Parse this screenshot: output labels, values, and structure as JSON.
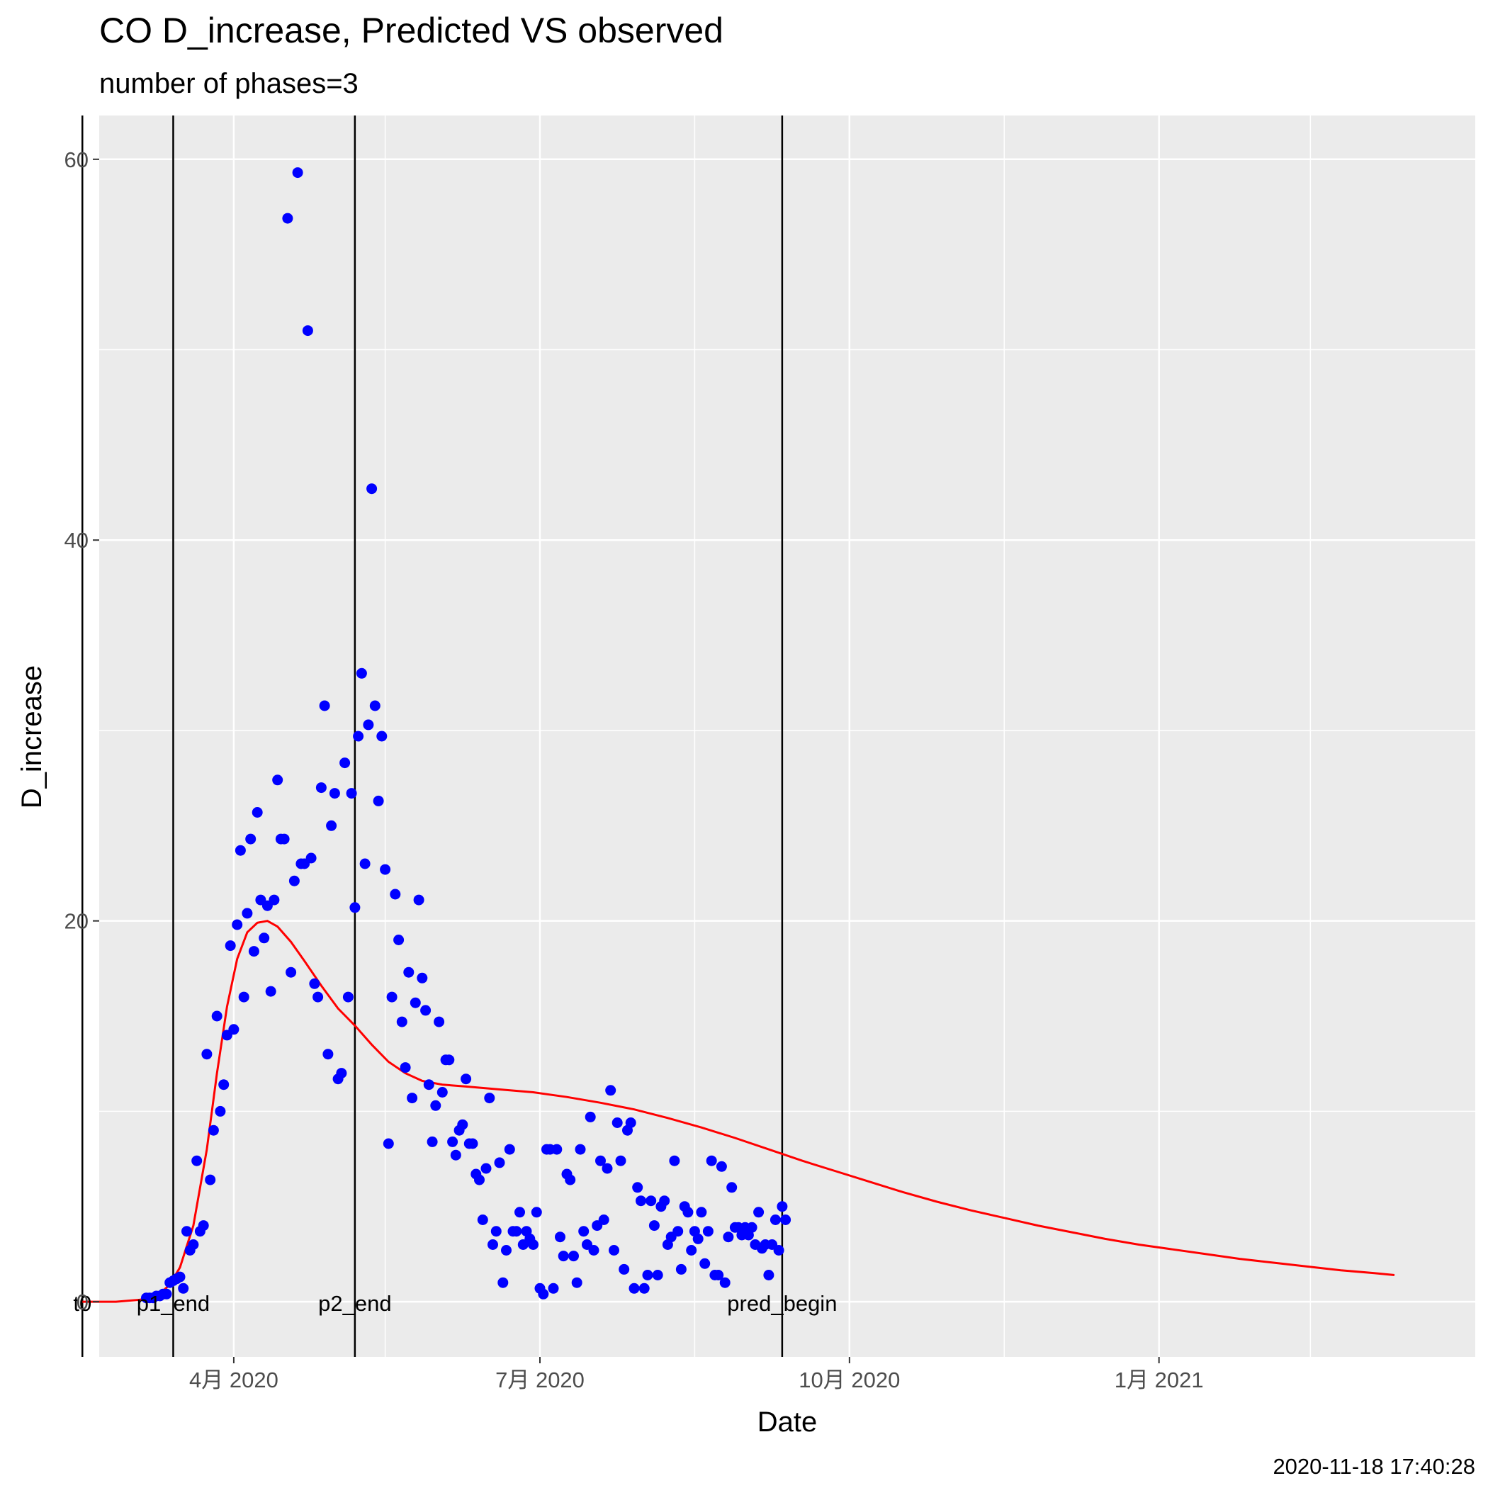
{
  "chart_data": {
    "type": "scatter",
    "title": "CO D_increase, Predicted VS observed",
    "subtitle": "number of phases=3",
    "xlabel": "Date",
    "ylabel": "D_increase",
    "caption": "2020-11-18 17:40:28",
    "xlim": [
      "2020-02-21",
      "2021-04-05"
    ],
    "ylim": [
      -2.9,
      62.3
    ],
    "grid": true,
    "x_ticks": [
      {
        "date": "2020-04-01",
        "label": "4月 2020"
      },
      {
        "date": "2020-07-01",
        "label": "7月 2020"
      },
      {
        "date": "2020-10-01",
        "label": "10月 2020"
      },
      {
        "date": "2021-01-01",
        "label": "1月 2021"
      }
    ],
    "x_minor_ticks": [
      "2020-02-15",
      "2020-05-16",
      "2020-08-16",
      "2020-11-16",
      "2021-02-15"
    ],
    "y_ticks": [
      0,
      20,
      40,
      60
    ],
    "y_minor_ticks": [
      10,
      30,
      50
    ],
    "vlines": [
      {
        "date": "2020-02-16",
        "label": "t0"
      },
      {
        "date": "2020-03-14",
        "label": "p1_end"
      },
      {
        "date": "2020-05-07",
        "label": "p2_end"
      },
      {
        "date": "2020-09-11",
        "label": "pred_begin"
      }
    ],
    "series": [
      {
        "role": "observed",
        "color": "#0000ff",
        "points": [
          [
            "2020-03-06",
            0.2
          ],
          [
            "2020-03-07",
            0.2
          ],
          [
            "2020-03-08",
            0.2
          ],
          [
            "2020-03-09",
            0.3
          ],
          [
            "2020-03-10",
            0.3
          ],
          [
            "2020-03-11",
            0.4
          ],
          [
            "2020-03-12",
            0.4
          ],
          [
            "2020-03-13",
            1.0
          ],
          [
            "2020-03-14",
            1.1
          ],
          [
            "2020-03-15",
            1.2
          ],
          [
            "2020-03-16",
            1.3
          ],
          [
            "2020-03-17",
            0.7
          ],
          [
            "2020-03-18",
            3.7
          ],
          [
            "2020-03-19",
            2.7
          ],
          [
            "2020-03-20",
            3.0
          ],
          [
            "2020-03-21",
            7.4
          ],
          [
            "2020-03-22",
            3.7
          ],
          [
            "2020-03-23",
            4.0
          ],
          [
            "2020-03-24",
            13.0
          ],
          [
            "2020-03-25",
            6.4
          ],
          [
            "2020-03-26",
            9.0
          ],
          [
            "2020-03-27",
            15.0
          ],
          [
            "2020-03-28",
            10.0
          ],
          [
            "2020-03-29",
            11.4
          ],
          [
            "2020-03-30",
            14.0
          ],
          [
            "2020-03-31",
            18.7
          ],
          [
            "2020-04-01",
            14.3
          ],
          [
            "2020-04-02",
            19.8
          ],
          [
            "2020-04-03",
            23.7
          ],
          [
            "2020-04-04",
            16.0
          ],
          [
            "2020-04-05",
            20.4
          ],
          [
            "2020-04-06",
            24.3
          ],
          [
            "2020-04-07",
            18.4
          ],
          [
            "2020-04-08",
            25.7
          ],
          [
            "2020-04-09",
            21.1
          ],
          [
            "2020-04-10",
            19.1
          ],
          [
            "2020-04-11",
            20.8
          ],
          [
            "2020-04-12",
            16.3
          ],
          [
            "2020-04-13",
            21.1
          ],
          [
            "2020-04-14",
            27.4
          ],
          [
            "2020-04-15",
            24.3
          ],
          [
            "2020-04-16",
            24.3
          ],
          [
            "2020-04-17",
            56.9
          ],
          [
            "2020-04-18",
            17.3
          ],
          [
            "2020-04-19",
            22.1
          ],
          [
            "2020-04-20",
            59.3
          ],
          [
            "2020-04-21",
            23.0
          ],
          [
            "2020-04-22",
            23.0
          ],
          [
            "2020-04-23",
            51.0
          ],
          [
            "2020-04-24",
            23.3
          ],
          [
            "2020-04-25",
            16.7
          ],
          [
            "2020-04-26",
            16.0
          ],
          [
            "2020-04-27",
            27.0
          ],
          [
            "2020-04-28",
            31.3
          ],
          [
            "2020-04-29",
            13.0
          ],
          [
            "2020-04-30",
            25.0
          ],
          [
            "2020-05-01",
            26.7
          ],
          [
            "2020-05-02",
            11.7
          ],
          [
            "2020-05-03",
            12.0
          ],
          [
            "2020-05-04",
            28.3
          ],
          [
            "2020-05-05",
            16.0
          ],
          [
            "2020-05-06",
            26.7
          ],
          [
            "2020-05-07",
            20.7
          ],
          [
            "2020-05-08",
            29.7
          ],
          [
            "2020-05-09",
            33.0
          ],
          [
            "2020-05-10",
            23.0
          ],
          [
            "2020-05-11",
            30.3
          ],
          [
            "2020-05-12",
            42.7
          ],
          [
            "2020-05-13",
            31.3
          ],
          [
            "2020-05-14",
            26.3
          ],
          [
            "2020-05-15",
            29.7
          ],
          [
            "2020-05-16",
            22.7
          ],
          [
            "2020-05-17",
            8.3
          ],
          [
            "2020-05-18",
            16.0
          ],
          [
            "2020-05-19",
            21.4
          ],
          [
            "2020-05-20",
            19.0
          ],
          [
            "2020-05-21",
            14.7
          ],
          [
            "2020-05-22",
            12.3
          ],
          [
            "2020-05-23",
            17.3
          ],
          [
            "2020-05-24",
            10.7
          ],
          [
            "2020-05-25",
            15.7
          ],
          [
            "2020-05-26",
            21.1
          ],
          [
            "2020-05-27",
            17.0
          ],
          [
            "2020-05-28",
            15.3
          ],
          [
            "2020-05-29",
            11.4
          ],
          [
            "2020-05-30",
            8.4
          ],
          [
            "2020-05-31",
            10.3
          ],
          [
            "2020-06-01",
            14.7
          ],
          [
            "2020-06-02",
            11.0
          ],
          [
            "2020-06-03",
            12.7
          ],
          [
            "2020-06-04",
            12.7
          ],
          [
            "2020-06-05",
            8.4
          ],
          [
            "2020-06-06",
            7.7
          ],
          [
            "2020-06-07",
            9.0
          ],
          [
            "2020-06-08",
            9.3
          ],
          [
            "2020-06-09",
            11.7
          ],
          [
            "2020-06-10",
            8.3
          ],
          [
            "2020-06-11",
            8.3
          ],
          [
            "2020-06-12",
            6.7
          ],
          [
            "2020-06-13",
            6.4
          ],
          [
            "2020-06-14",
            4.3
          ],
          [
            "2020-06-15",
            7.0
          ],
          [
            "2020-06-16",
            10.7
          ],
          [
            "2020-06-17",
            3.0
          ],
          [
            "2020-06-18",
            3.7
          ],
          [
            "2020-06-19",
            7.3
          ],
          [
            "2020-06-20",
            1.0
          ],
          [
            "2020-06-21",
            2.7
          ],
          [
            "2020-06-22",
            8.0
          ],
          [
            "2020-06-23",
            3.7
          ],
          [
            "2020-06-24",
            3.7
          ],
          [
            "2020-06-25",
            4.7
          ],
          [
            "2020-06-26",
            3.0
          ],
          [
            "2020-06-27",
            3.7
          ],
          [
            "2020-06-28",
            3.3
          ],
          [
            "2020-06-29",
            3.0
          ],
          [
            "2020-06-30",
            4.7
          ],
          [
            "2020-07-01",
            0.7
          ],
          [
            "2020-07-02",
            0.4
          ],
          [
            "2020-07-03",
            8.0
          ],
          [
            "2020-07-04",
            8.0
          ],
          [
            "2020-07-05",
            0.7
          ],
          [
            "2020-07-06",
            8.0
          ],
          [
            "2020-07-07",
            3.4
          ],
          [
            "2020-07-08",
            2.4
          ],
          [
            "2020-07-09",
            6.7
          ],
          [
            "2020-07-10",
            6.4
          ],
          [
            "2020-07-11",
            2.4
          ],
          [
            "2020-07-12",
            1.0
          ],
          [
            "2020-07-13",
            8.0
          ],
          [
            "2020-07-14",
            3.7
          ],
          [
            "2020-07-15",
            3.0
          ],
          [
            "2020-07-16",
            9.7
          ],
          [
            "2020-07-17",
            2.7
          ],
          [
            "2020-07-18",
            4.0
          ],
          [
            "2020-07-19",
            7.4
          ],
          [
            "2020-07-20",
            4.3
          ],
          [
            "2020-07-21",
            7.0
          ],
          [
            "2020-07-22",
            11.1
          ],
          [
            "2020-07-23",
            2.7
          ],
          [
            "2020-07-24",
            9.4
          ],
          [
            "2020-07-25",
            7.4
          ],
          [
            "2020-07-26",
            1.7
          ],
          [
            "2020-07-27",
            9.0
          ],
          [
            "2020-07-28",
            9.4
          ],
          [
            "2020-07-29",
            0.7
          ],
          [
            "2020-07-30",
            6.0
          ],
          [
            "2020-07-31",
            5.3
          ],
          [
            "2020-08-01",
            0.7
          ],
          [
            "2020-08-02",
            1.4
          ],
          [
            "2020-08-03",
            5.3
          ],
          [
            "2020-08-04",
            4.0
          ],
          [
            "2020-08-05",
            1.4
          ],
          [
            "2020-08-06",
            5.0
          ],
          [
            "2020-08-07",
            5.3
          ],
          [
            "2020-08-08",
            3.0
          ],
          [
            "2020-08-09",
            3.4
          ],
          [
            "2020-08-10",
            7.4
          ],
          [
            "2020-08-11",
            3.7
          ],
          [
            "2020-08-12",
            1.7
          ],
          [
            "2020-08-13",
            5.0
          ],
          [
            "2020-08-14",
            4.7
          ],
          [
            "2020-08-15",
            2.7
          ],
          [
            "2020-08-16",
            3.7
          ],
          [
            "2020-08-17",
            3.3
          ],
          [
            "2020-08-18",
            4.7
          ],
          [
            "2020-08-19",
            2.0
          ],
          [
            "2020-08-20",
            3.7
          ],
          [
            "2020-08-21",
            7.4
          ],
          [
            "2020-08-22",
            1.4
          ],
          [
            "2020-08-23",
            1.4
          ],
          [
            "2020-08-24",
            7.1
          ],
          [
            "2020-08-25",
            1.0
          ],
          [
            "2020-08-26",
            3.4
          ],
          [
            "2020-08-27",
            6.0
          ],
          [
            "2020-08-28",
            3.9
          ],
          [
            "2020-08-29",
            3.9
          ],
          [
            "2020-08-30",
            3.5
          ],
          [
            "2020-08-31",
            3.9
          ],
          [
            "2020-09-01",
            3.5
          ],
          [
            "2020-09-02",
            3.9
          ],
          [
            "2020-09-03",
            3.0
          ],
          [
            "2020-09-04",
            4.7
          ],
          [
            "2020-09-05",
            2.8
          ],
          [
            "2020-09-06",
            3.0
          ],
          [
            "2020-09-07",
            1.4
          ],
          [
            "2020-09-08",
            3.0
          ],
          [
            "2020-09-09",
            4.3
          ],
          [
            "2020-09-10",
            2.7
          ],
          [
            "2020-09-11",
            5.0
          ],
          [
            "2020-09-12",
            4.3
          ]
        ]
      },
      {
        "role": "predicted",
        "color": "#ff0000",
        "points": [
          [
            "2020-02-16",
            0.0
          ],
          [
            "2020-02-26",
            0.0
          ],
          [
            "2020-03-04",
            0.1
          ],
          [
            "2020-03-09",
            0.25
          ],
          [
            "2020-03-13",
            0.9
          ],
          [
            "2020-03-16",
            1.8
          ],
          [
            "2020-03-20",
            4.0
          ],
          [
            "2020-03-24",
            8.0
          ],
          [
            "2020-03-27",
            12.0
          ],
          [
            "2020-03-30",
            15.5
          ],
          [
            "2020-04-02",
            18.0
          ],
          [
            "2020-04-05",
            19.4
          ],
          [
            "2020-04-08",
            19.9
          ],
          [
            "2020-04-11",
            20.0
          ],
          [
            "2020-04-14",
            19.7
          ],
          [
            "2020-04-18",
            18.9
          ],
          [
            "2020-04-22",
            17.9
          ],
          [
            "2020-04-27",
            16.6
          ],
          [
            "2020-05-02",
            15.4
          ],
          [
            "2020-05-07",
            14.5
          ],
          [
            "2020-05-12",
            13.5
          ],
          [
            "2020-05-17",
            12.6
          ],
          [
            "2020-05-22",
            12.0
          ],
          [
            "2020-05-27",
            11.6
          ],
          [
            "2020-06-02",
            11.4
          ],
          [
            "2020-06-09",
            11.3
          ],
          [
            "2020-06-19",
            11.15
          ],
          [
            "2020-06-29",
            11.0
          ],
          [
            "2020-07-09",
            10.75
          ],
          [
            "2020-07-19",
            10.45
          ],
          [
            "2020-07-29",
            10.1
          ],
          [
            "2020-08-08",
            9.65
          ],
          [
            "2020-08-18",
            9.15
          ],
          [
            "2020-08-28",
            8.6
          ],
          [
            "2020-09-07",
            8.0
          ],
          [
            "2020-09-17",
            7.4
          ],
          [
            "2020-09-27",
            6.85
          ],
          [
            "2020-10-07",
            6.3
          ],
          [
            "2020-10-17",
            5.75
          ],
          [
            "2020-10-27",
            5.25
          ],
          [
            "2020-11-06",
            4.8
          ],
          [
            "2020-11-16",
            4.4
          ],
          [
            "2020-11-26",
            4.0
          ],
          [
            "2020-12-06",
            3.65
          ],
          [
            "2020-12-16",
            3.3
          ],
          [
            "2020-12-26",
            3.0
          ],
          [
            "2021-01-05",
            2.75
          ],
          [
            "2021-01-15",
            2.5
          ],
          [
            "2021-01-25",
            2.25
          ],
          [
            "2021-02-04",
            2.05
          ],
          [
            "2021-02-14",
            1.85
          ],
          [
            "2021-02-24",
            1.65
          ],
          [
            "2021-03-06",
            1.5
          ],
          [
            "2021-03-12",
            1.4
          ]
        ]
      }
    ]
  }
}
